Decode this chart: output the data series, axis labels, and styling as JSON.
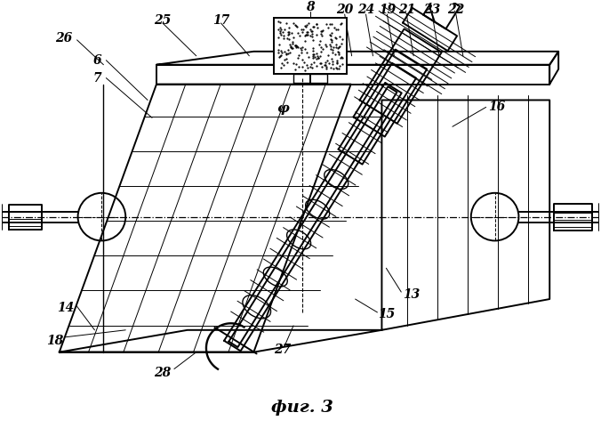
{
  "title": "фиг. 3",
  "bg_color": "#ffffff",
  "line_color": "#000000",
  "lw_main": 1.4,
  "lw_thin": 0.7,
  "lw_medium": 1.0
}
